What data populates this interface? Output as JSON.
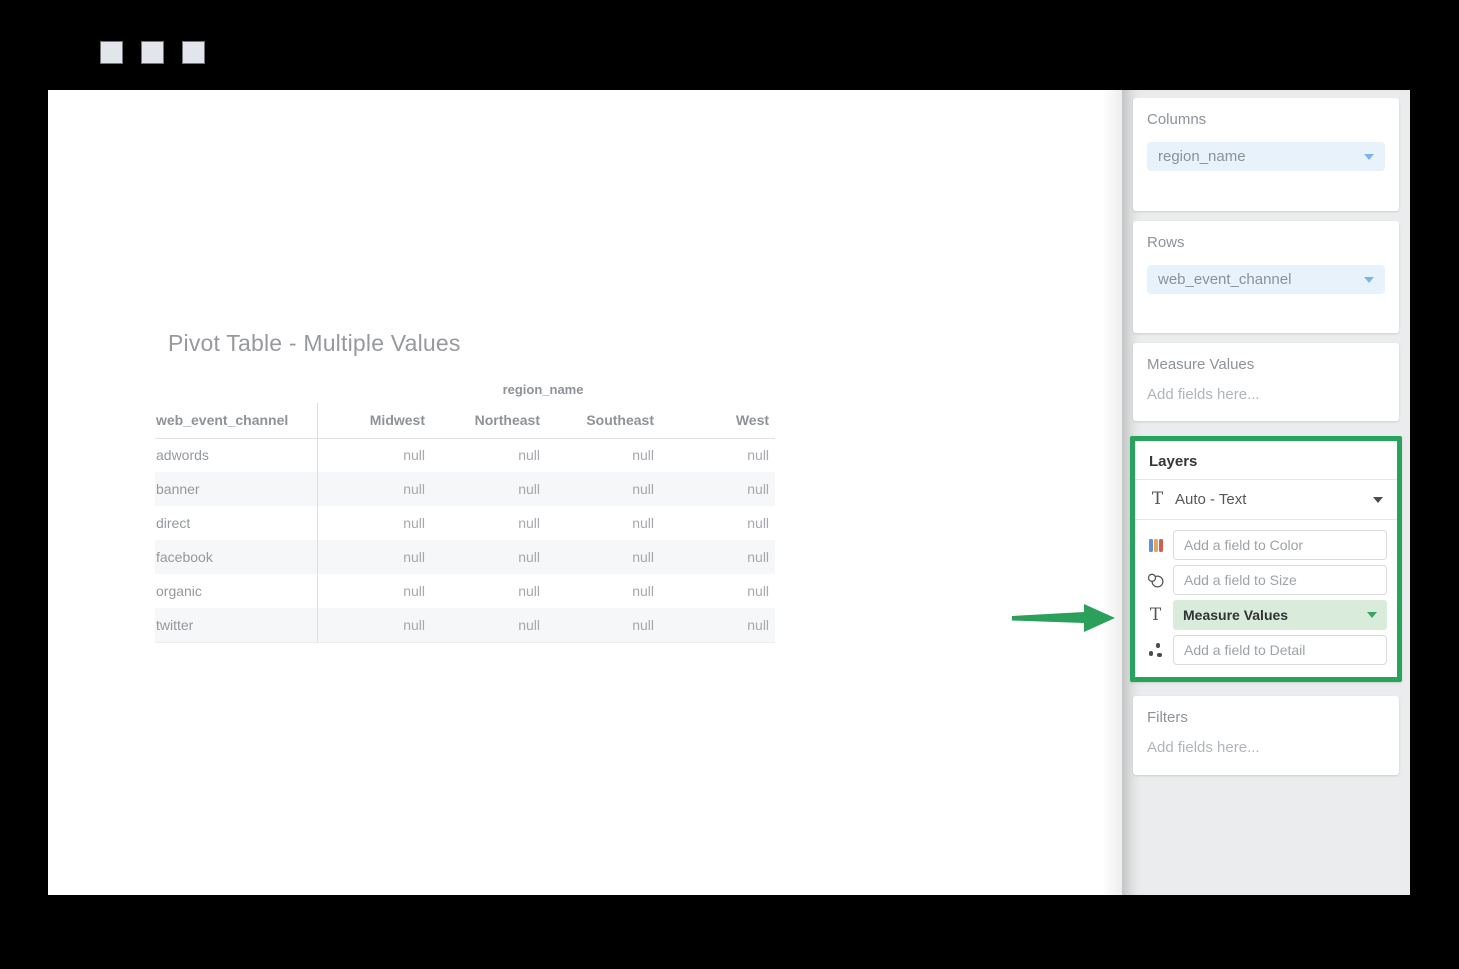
{
  "titlebar": {
    "controls": [
      {
        "name": "window-button"
      },
      {
        "name": "window-button"
      },
      {
        "name": "window-button"
      }
    ]
  },
  "main": {
    "title": "Pivot Table - Multiple Values",
    "pivot": {
      "column_dimension": "region_name",
      "row_dimension": "web_event_channel",
      "columns": [
        "Midwest",
        "Northeast",
        "Southeast",
        "West"
      ],
      "rows": [
        {
          "label": "adwords",
          "values": [
            "null",
            "null",
            "null",
            "null"
          ]
        },
        {
          "label": "banner",
          "values": [
            "null",
            "null",
            "null",
            "null"
          ]
        },
        {
          "label": "direct",
          "values": [
            "null",
            "null",
            "null",
            "null"
          ]
        },
        {
          "label": "facebook",
          "values": [
            "null",
            "null",
            "null",
            "null"
          ]
        },
        {
          "label": "organic",
          "values": [
            "null",
            "null",
            "null",
            "null"
          ]
        },
        {
          "label": "twitter",
          "values": [
            "null",
            "null",
            "null",
            "null"
          ]
        }
      ]
    }
  },
  "sidebar": {
    "columns_panel": {
      "title": "Columns",
      "field": "region_name"
    },
    "rows_panel": {
      "title": "Rows",
      "field": "web_event_channel"
    },
    "measure_values_panel": {
      "title": "Measure Values",
      "placeholder": "Add fields here..."
    },
    "layers_panel": {
      "title": "Layers",
      "layer_type": "Auto - Text",
      "layer_type_icon": "text-icon",
      "slots": [
        {
          "icon": "color-bars-icon",
          "kind": "input",
          "placeholder": "Add a field to Color"
        },
        {
          "icon": "size-circles-icon",
          "kind": "input",
          "placeholder": "Add a field to Size"
        },
        {
          "icon": "text-icon",
          "kind": "pill",
          "value": "Measure Values"
        },
        {
          "icon": "detail-dots-icon",
          "kind": "input",
          "placeholder": "Add a field to Detail"
        }
      ]
    },
    "filters_panel": {
      "title": "Filters",
      "placeholder": "Add fields here..."
    }
  },
  "annotations": {
    "arrow": {
      "name": "green-arrow",
      "color": "#2ba05a",
      "points_at": "layers-panel"
    }
  },
  "colors": {
    "highlight_green": "#27a45b",
    "arrow_green": "#2ba05a",
    "pill_blue_bg": "#e8f2fb",
    "pill_green_bg": "#d9ecdc",
    "sidebar_bg": "#eaeced",
    "titlebar_bg": "#000000"
  }
}
